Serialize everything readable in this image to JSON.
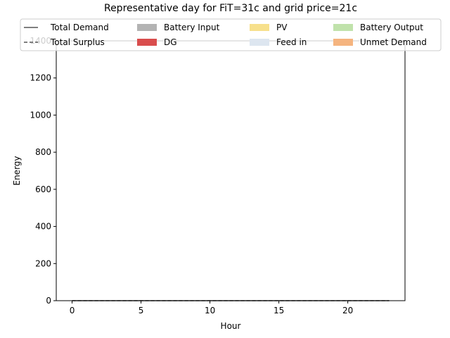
{
  "chart_data": {
    "type": "area",
    "title": "Representative day for FiT=31c and grid price=21c",
    "xlabel": "Hour",
    "ylabel": "Energy",
    "xlim": [
      -1.15,
      24.15
    ],
    "ylim": [
      0,
      1400
    ],
    "xticks": [
      0,
      5,
      10,
      15,
      20
    ],
    "yticks": [
      0,
      200,
      400,
      600,
      800,
      1000,
      1200,
      1400
    ],
    "x": [
      0,
      1,
      2,
      3,
      4,
      5,
      6,
      7,
      8,
      9,
      10,
      11,
      12,
      13,
      14,
      15,
      16,
      17,
      18,
      19,
      20,
      21,
      22,
      23
    ],
    "legend_position": "top",
    "series": [
      {
        "name": "Total Demand",
        "kind": "line",
        "style": "solid",
        "color": "#555555",
        "values": [
          0,
          0,
          0,
          0,
          0,
          0,
          0,
          0,
          0,
          0,
          0,
          0,
          0,
          0,
          0,
          0,
          0,
          0,
          0,
          0,
          0,
          0,
          0,
          0
        ]
      },
      {
        "name": "Total Surplus",
        "kind": "line",
        "style": "dashed",
        "color": "#555555",
        "values": [
          0,
          0,
          0,
          0,
          0,
          0,
          0,
          0,
          0,
          0,
          0,
          0,
          0,
          0,
          0,
          0,
          0,
          0,
          0,
          0,
          0,
          0,
          0,
          0
        ]
      },
      {
        "name": "Battery Input",
        "kind": "area",
        "color": "#b3b3b3",
        "values": [
          0,
          0,
          0,
          0,
          0,
          0,
          0,
          0,
          0,
          0,
          0,
          0,
          0,
          0,
          0,
          0,
          0,
          0,
          0,
          0,
          0,
          0,
          0,
          0
        ]
      },
      {
        "name": "DG",
        "kind": "area",
        "color": "#d94d4d",
        "values": [
          0,
          0,
          0,
          0,
          0,
          0,
          0,
          0,
          0,
          0,
          0,
          0,
          0,
          0,
          0,
          0,
          0,
          0,
          0,
          0,
          0,
          0,
          0,
          0
        ]
      },
      {
        "name": "PV",
        "kind": "area",
        "color": "#f7e08c",
        "values": [
          0,
          0,
          0,
          0,
          0,
          0,
          0,
          0,
          0,
          0,
          0,
          0,
          0,
          0,
          0,
          0,
          0,
          0,
          0,
          0,
          0,
          0,
          0,
          0
        ]
      },
      {
        "name": "Feed in",
        "kind": "area",
        "color": "#dde6f0",
        "values": [
          0,
          0,
          0,
          0,
          0,
          0,
          0,
          0,
          0,
          0,
          0,
          0,
          0,
          0,
          0,
          0,
          0,
          0,
          0,
          0,
          0,
          0,
          0,
          0
        ]
      },
      {
        "name": "Battery Output",
        "kind": "area",
        "color": "#c0e2ab",
        "values": [
          0,
          0,
          0,
          0,
          0,
          0,
          0,
          0,
          0,
          0,
          0,
          0,
          0,
          0,
          0,
          0,
          0,
          0,
          0,
          0,
          0,
          0,
          0,
          0
        ]
      },
      {
        "name": "Unmet Demand",
        "kind": "area",
        "color": "#f5b47f",
        "values": [
          0,
          0,
          0,
          0,
          0,
          0,
          0,
          0,
          0,
          0,
          0,
          0,
          0,
          0,
          0,
          0,
          0,
          0,
          0,
          0,
          0,
          0,
          0,
          0
        ]
      }
    ]
  }
}
